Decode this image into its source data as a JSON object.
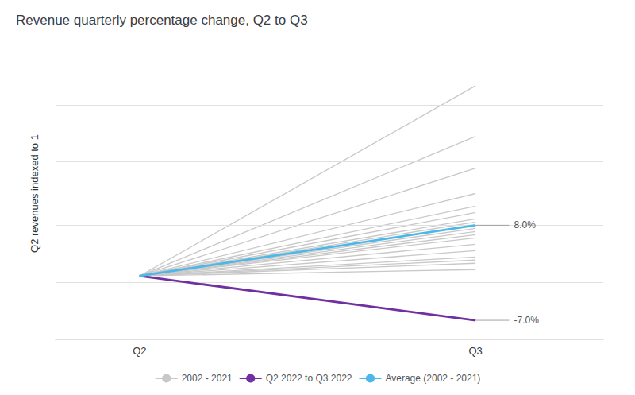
{
  "chart_data": {
    "type": "line",
    "title": "Revenue quarterly percentage change, Q2 to Q3",
    "ylabel": "Q2 revenues indexed to 1",
    "x": [
      0,
      1
    ],
    "xlim": [
      -0.25,
      1.38
    ],
    "xticks": [
      {
        "value": 0,
        "label": "Q2"
      },
      {
        "value": 1,
        "label": "Q3"
      }
    ],
    "ylim": [
      0.9,
      1.36
    ],
    "yticks": [
      0.9,
      0.992,
      1.084,
      1.176,
      1.268,
      1.36
    ],
    "grid": true,
    "tick_labels": "x",
    "legend": "bottom",
    "series": [
      {
        "name": "2002 - 2021",
        "color": "#c8c8c8",
        "values": [
          1.0,
          1.01
        ]
      },
      {
        "name": "2002 - 2021",
        "color": "#c8c8c8",
        "values": [
          1.0,
          1.02
        ]
      },
      {
        "name": "2002 - 2021",
        "color": "#c8c8c8",
        "values": [
          1.0,
          1.025
        ]
      },
      {
        "name": "2002 - 2021",
        "color": "#c8c8c8",
        "values": [
          1.0,
          1.03
        ]
      },
      {
        "name": "2002 - 2021",
        "color": "#c8c8c8",
        "values": [
          1.0,
          1.04
        ]
      },
      {
        "name": "2002 - 2021",
        "color": "#c8c8c8",
        "values": [
          1.0,
          1.05
        ]
      },
      {
        "name": "2002 - 2021",
        "color": "#c8c8c8",
        "values": [
          1.0,
          1.06
        ]
      },
      {
        "name": "2002 - 2021",
        "color": "#c8c8c8",
        "values": [
          1.0,
          1.065
        ]
      },
      {
        "name": "2002 - 2021",
        "color": "#c8c8c8",
        "values": [
          1.0,
          1.07
        ]
      },
      {
        "name": "2002 - 2021",
        "color": "#c8c8c8",
        "values": [
          1.0,
          1.075
        ]
      },
      {
        "name": "2002 - 2021",
        "color": "#c8c8c8",
        "values": [
          1.0,
          1.08
        ]
      },
      {
        "name": "2002 - 2021",
        "color": "#c8c8c8",
        "values": [
          1.0,
          1.085
        ]
      },
      {
        "name": "2002 - 2021",
        "color": "#c8c8c8",
        "values": [
          1.0,
          1.09
        ]
      },
      {
        "name": "2002 - 2021",
        "color": "#c8c8c8",
        "values": [
          1.0,
          1.1
        ]
      },
      {
        "name": "2002 - 2021",
        "color": "#c8c8c8",
        "values": [
          1.0,
          1.11
        ]
      },
      {
        "name": "2002 - 2021",
        "color": "#c8c8c8",
        "values": [
          1.0,
          1.13
        ]
      },
      {
        "name": "2002 - 2021",
        "color": "#c8c8c8",
        "values": [
          1.0,
          1.17
        ]
      },
      {
        "name": "2002 - 2021",
        "color": "#c8c8c8",
        "values": [
          1.0,
          1.22
        ]
      },
      {
        "name": "2002 - 2021",
        "color": "#c8c8c8",
        "values": [
          1.0,
          1.3
        ]
      },
      {
        "name": "Q2 2022 to Q3 2022",
        "color": "#7030a0",
        "values": [
          1.0,
          0.93
        ]
      },
      {
        "name": "Average (2002 - 2021)",
        "color": "#4db8e8",
        "values": [
          1.0,
          1.08
        ]
      }
    ],
    "annotations": [
      {
        "text": "8.0%",
        "x": 1,
        "y": 1.08
      },
      {
        "text": "-7.0%",
        "x": 1,
        "y": 0.93
      }
    ]
  }
}
